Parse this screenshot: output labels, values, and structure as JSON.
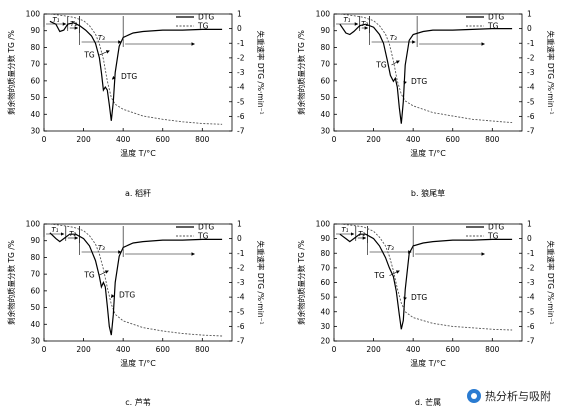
{
  "chart_data": [
    {
      "type": "line",
      "caption": "a. 稻秆",
      "xlabel": "温度 T/°C",
      "ylabel": "剩余物的质量分数 TG /%",
      "y2label": "失重速率 DTG /%·min⁻¹",
      "xlim": [
        0,
        950
      ],
      "ylim": [
        30,
        100
      ],
      "y2lim": [
        -7,
        1
      ],
      "xticks": [
        0,
        200,
        400,
        600,
        800
      ],
      "yticks": [
        30,
        40,
        50,
        60,
        70,
        80,
        90,
        100
      ],
      "y2ticks": [
        1,
        0,
        -1,
        -2,
        -3,
        -4,
        -5,
        -6,
        -7
      ],
      "legend": [
        "DTG",
        "TG"
      ],
      "legend_position": "top-right",
      "stage_labels": [
        "T₁",
        "T₂",
        "T₃"
      ],
      "stage_bounds": [
        0,
        120,
        180,
        400
      ],
      "curve_labels": [
        {
          "text": "TG",
          "x": 230,
          "y": 74,
          "tip_x": 330,
          "tip_y": 78
        },
        {
          "text": "DTG",
          "x": 430,
          "y": 61,
          "tip_x": 345,
          "tip_y": 61
        }
      ],
      "series": [
        {
          "name": "TG",
          "axis": "left",
          "dashed": true,
          "x": [
            30,
            100,
            150,
            200,
            230,
            260,
            280,
            300,
            320,
            340,
            360,
            400,
            500,
            600,
            700,
            800,
            900
          ],
          "y": [
            100,
            99,
            98,
            96,
            93,
            88,
            82,
            73,
            60,
            50,
            46,
            43,
            39,
            37,
            35.5,
            34.5,
            34
          ]
        },
        {
          "name": "DTG",
          "axis": "right",
          "x": [
            30,
            60,
            80,
            100,
            120,
            150,
            180,
            210,
            240,
            260,
            280,
            290,
            300,
            310,
            320,
            330,
            340,
            350,
            360,
            380,
            400,
            450,
            500,
            600,
            700,
            800,
            900
          ],
          "y": [
            0.5,
            0.3,
            -0.2,
            -0.1,
            0.3,
            0.4,
            0.2,
            -0.1,
            -0.5,
            -1.0,
            -2.0,
            -3.0,
            -4.2,
            -4.0,
            -4.2,
            -5.2,
            -6.3,
            -5.0,
            -3.0,
            -1.2,
            -0.6,
            -0.3,
            -0.2,
            -0.1,
            -0.1,
            -0.05,
            -0.05
          ]
        }
      ]
    },
    {
      "type": "line",
      "caption": "b. 狼尾草",
      "xlabel": "温度 T/°C",
      "ylabel": "剩余物的质量分数 TG /%",
      "y2label": "失重速率 DTG /%·min⁻¹",
      "xlim": [
        0,
        950
      ],
      "ylim": [
        30,
        100
      ],
      "y2lim": [
        -7,
        1
      ],
      "xticks": [
        0,
        200,
        400,
        600,
        800
      ],
      "yticks": [
        30,
        40,
        50,
        60,
        70,
        80,
        90,
        100
      ],
      "y2ticks": [
        1,
        0,
        -1,
        -2,
        -3,
        -4,
        -5,
        -6,
        -7
      ],
      "legend": [
        "DTG",
        "TG"
      ],
      "legend_position": "top-right",
      "stage_labels": [
        "T₁",
        "T₂",
        "T₃"
      ],
      "stage_bounds": [
        0,
        130,
        180,
        420
      ],
      "curve_labels": [
        {
          "text": "TG",
          "x": 240,
          "y": 68,
          "tip_x": 330,
          "tip_y": 72
        },
        {
          "text": "DTG",
          "x": 430,
          "y": 58,
          "tip_x": 355,
          "tip_y": 58
        }
      ],
      "series": [
        {
          "name": "TG",
          "axis": "left",
          "dashed": true,
          "x": [
            30,
            100,
            150,
            200,
            230,
            260,
            280,
            300,
            320,
            340,
            360,
            400,
            500,
            600,
            700,
            800,
            900
          ],
          "y": [
            100,
            99,
            98,
            96,
            93,
            88,
            82,
            72,
            60,
            52,
            48,
            45,
            41,
            39,
            37,
            36,
            35
          ]
        },
        {
          "name": "DTG",
          "axis": "right",
          "x": [
            30,
            60,
            80,
            100,
            130,
            160,
            200,
            230,
            250,
            270,
            285,
            300,
            310,
            320,
            330,
            340,
            350,
            360,
            380,
            400,
            450,
            500,
            600,
            700,
            800,
            900
          ],
          "y": [
            0.3,
            -0.3,
            -0.4,
            -0.2,
            0.2,
            0.3,
            0.1,
            -0.4,
            -1.0,
            -2.2,
            -3.2,
            -3.6,
            -3.4,
            -4.0,
            -5.4,
            -6.5,
            -5.0,
            -2.5,
            -0.8,
            -0.4,
            -0.2,
            -0.1,
            -0.1,
            -0.05,
            0.0,
            0.0
          ]
        }
      ]
    },
    {
      "type": "line",
      "caption": "c. 芦苇",
      "xlabel": "温度 T/°C",
      "ylabel": "剩余物的质量分数 TG /%",
      "y2label": "失重速率 DTG /%·min⁻¹",
      "xlim": [
        0,
        950
      ],
      "ylim": [
        30,
        100
      ],
      "y2lim": [
        -7,
        1
      ],
      "xticks": [
        0,
        200,
        400,
        600,
        800
      ],
      "yticks": [
        30,
        40,
        50,
        60,
        70,
        80,
        90,
        100
      ],
      "y2ticks": [
        1,
        0,
        -1,
        -2,
        -3,
        -4,
        -5,
        -6,
        -7
      ],
      "legend": [
        "DTG",
        "TG"
      ],
      "legend_position": "top-right",
      "stage_labels": [
        "T₁",
        "T₂",
        "T₃"
      ],
      "stage_bounds": [
        0,
        110,
        180,
        400
      ],
      "curve_labels": [
        {
          "text": "TG",
          "x": 230,
          "y": 68,
          "tip_x": 325,
          "tip_y": 72
        },
        {
          "text": "DTG",
          "x": 420,
          "y": 56,
          "tip_x": 340,
          "tip_y": 56
        }
      ],
      "series": [
        {
          "name": "TG",
          "axis": "left",
          "dashed": true,
          "x": [
            30,
            100,
            150,
            200,
            230,
            260,
            280,
            300,
            320,
            340,
            360,
            400,
            500,
            600,
            700,
            800,
            900
          ],
          "y": [
            100,
            99,
            98,
            96,
            93,
            88,
            82,
            73,
            62,
            52,
            46,
            42,
            38,
            36,
            34.5,
            33.5,
            33
          ]
        },
        {
          "name": "DTG",
          "axis": "right",
          "x": [
            30,
            60,
            80,
            100,
            130,
            160,
            200,
            230,
            260,
            280,
            290,
            300,
            310,
            320,
            330,
            340,
            350,
            360,
            380,
            400,
            450,
            500,
            600,
            700,
            800,
            900
          ],
          "y": [
            0.4,
            0.0,
            -0.2,
            0.0,
            0.3,
            0.3,
            0.0,
            -0.5,
            -1.5,
            -2.6,
            -3.3,
            -3.0,
            -3.3,
            -4.6,
            -6.0,
            -6.6,
            -5.2,
            -3.0,
            -1.2,
            -0.6,
            -0.3,
            -0.2,
            -0.1,
            -0.1,
            -0.05,
            -0.05
          ]
        }
      ]
    },
    {
      "type": "line",
      "caption": "d. 芒属",
      "xlabel": "温度 T/°C",
      "ylabel": "剩余物的质量分数 TG /%",
      "y2label": "失重速率 DTG /%·min⁻¹",
      "xlim": [
        0,
        950
      ],
      "ylim": [
        20,
        100
      ],
      "y2lim": [
        -7,
        1
      ],
      "xticks": [
        0,
        200,
        400,
        600,
        800
      ],
      "yticks": [
        20,
        30,
        40,
        50,
        60,
        70,
        80,
        90,
        100
      ],
      "y2ticks": [
        1,
        0,
        -1,
        -2,
        -3,
        -4,
        -5,
        -6,
        -7
      ],
      "legend": [
        "DTG",
        "TG"
      ],
      "legend_position": "top-right",
      "stage_labels": [
        "T₁",
        "T₂",
        "T₃"
      ],
      "stage_bounds": [
        0,
        110,
        170,
        400
      ],
      "curve_labels": [
        {
          "text": "TG",
          "x": 230,
          "y": 63,
          "tip_x": 330,
          "tip_y": 68
        },
        {
          "text": "DTG",
          "x": 430,
          "y": 48,
          "tip_x": 355,
          "tip_y": 48
        }
      ],
      "series": [
        {
          "name": "TG",
          "axis": "left",
          "dashed": true,
          "x": [
            30,
            100,
            150,
            200,
            230,
            260,
            280,
            300,
            320,
            340,
            360,
            400,
            500,
            600,
            700,
            800,
            900
          ],
          "y": [
            100,
            99,
            98,
            95,
            91,
            85,
            78,
            68,
            56,
            46,
            40,
            36,
            32,
            30,
            29,
            28,
            27.5
          ]
        },
        {
          "name": "DTG",
          "axis": "right",
          "x": [
            30,
            60,
            80,
            100,
            130,
            160,
            200,
            230,
            260,
            280,
            300,
            315,
            330,
            340,
            350,
            360,
            380,
            400,
            450,
            500,
            600,
            700,
            800,
            900
          ],
          "y": [
            0.3,
            0.0,
            -0.2,
            0.0,
            0.3,
            0.3,
            0.0,
            -0.5,
            -1.3,
            -2.0,
            -2.6,
            -3.6,
            -5.2,
            -6.2,
            -5.6,
            -3.5,
            -1.0,
            -0.5,
            -0.3,
            -0.2,
            -0.1,
            -0.1,
            -0.05,
            -0.05
          ]
        }
      ]
    }
  ],
  "watermark": {
    "text": "热分析与吸附",
    "icon": "wechat-logo-icon"
  }
}
